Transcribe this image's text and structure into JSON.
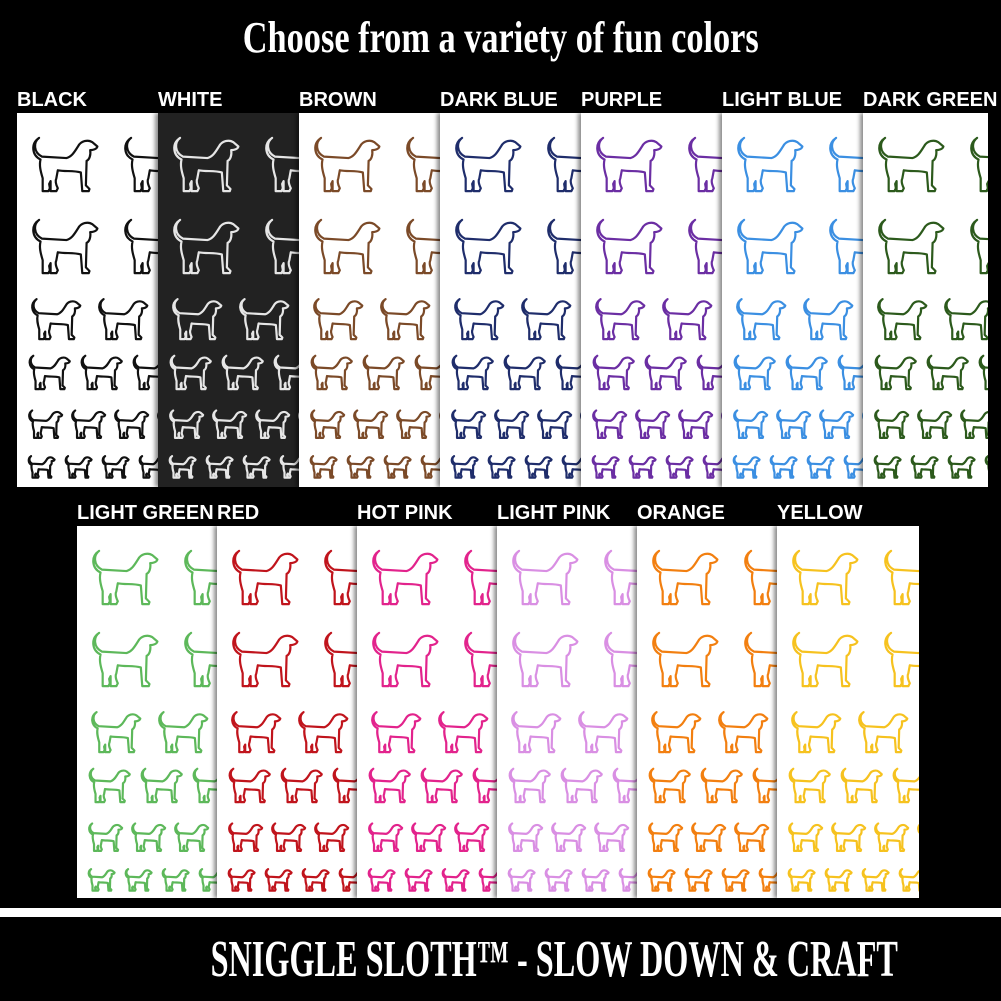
{
  "header": {
    "title": "Choose from a variety of fun colors"
  },
  "rows": [
    [
      {
        "label": "BLACK",
        "color": "#111111",
        "background": "#ffffff"
      },
      {
        "label": "WHITE",
        "color": "#e6e6e6",
        "background": "#222222"
      },
      {
        "label": "BROWN",
        "color": "#7b4a28",
        "background": "#ffffff"
      },
      {
        "label": "DARK BLUE",
        "color": "#1f2d6b",
        "background": "#ffffff"
      },
      {
        "label": "PURPLE",
        "color": "#6b2ea3",
        "background": "#ffffff"
      },
      {
        "label": "LIGHT BLUE",
        "color": "#3b8fe2",
        "background": "#ffffff"
      },
      {
        "label": "DARK GREEN",
        "color": "#2c5a1c",
        "background": "#ffffff"
      }
    ],
    [
      {
        "label": "LIGHT GREEN",
        "color": "#5db85a",
        "background": "#ffffff"
      },
      {
        "label": "RED",
        "color": "#c0141c",
        "background": "#ffffff"
      },
      {
        "label": "HOT PINK",
        "color": "#e2238c",
        "background": "#ffffff"
      },
      {
        "label": "LIGHT PINK",
        "color": "#d98fe3",
        "background": "#ffffff"
      },
      {
        "label": "ORANGE",
        "color": "#f27f10",
        "background": "#ffffff"
      },
      {
        "label": "YELLOW",
        "color": "#f6c21f",
        "background": "#ffffff"
      }
    ]
  ],
  "icon": "dog-outline-icon",
  "footer": {
    "text": "SNIGGLE SLOTH™ - SLOW DOWN & CRAFT"
  }
}
